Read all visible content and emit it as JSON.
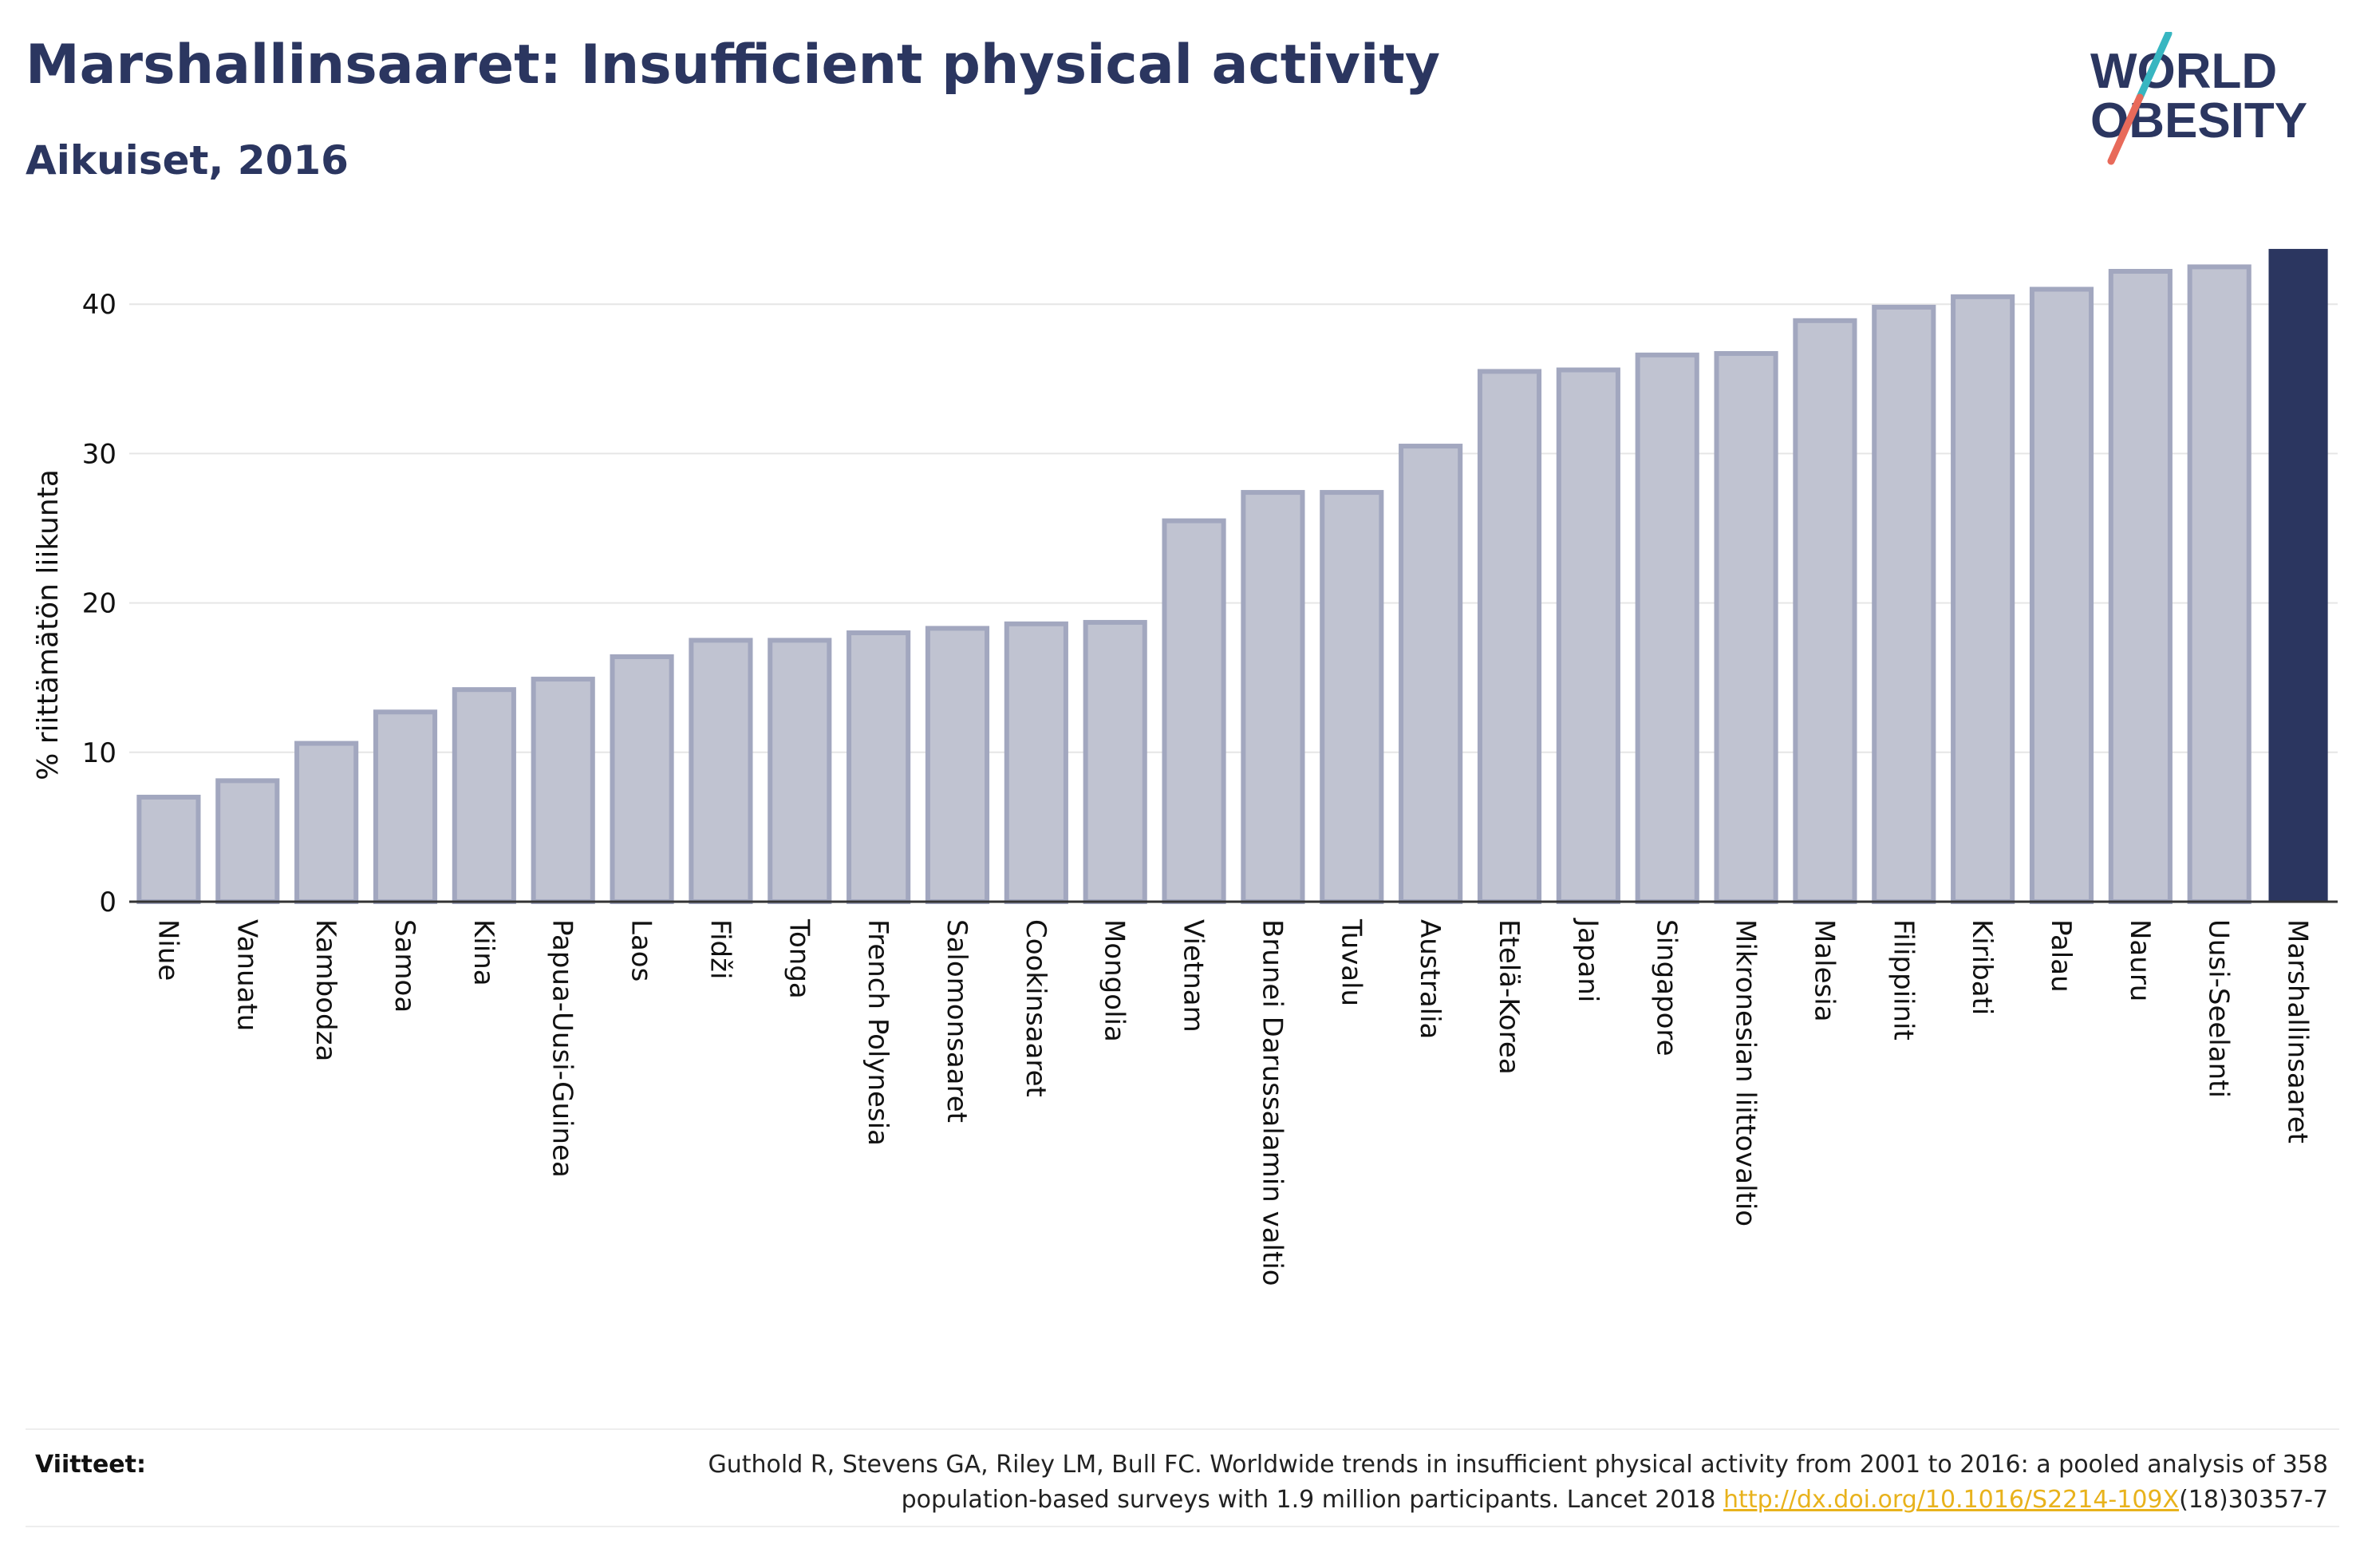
{
  "header": {
    "title": "Marshallinsaaret: Insufficient physical activity",
    "subtitle": "Aikuiset, 2016"
  },
  "logo": {
    "line1": "WORLD",
    "line2": "OBESITY",
    "text_color": "#2b3660",
    "slash_colors": [
      "#38b6c1",
      "#e86a5a"
    ]
  },
  "chart_data": {
    "type": "bar",
    "title": "Marshallinsaaret: Insufficient physical activity",
    "subtitle": "Aikuiset, 2016",
    "xlabel": "",
    "ylabel": "% riittämätön liikunta",
    "ylim": [
      0,
      44
    ],
    "yticks": [
      0,
      10,
      20,
      30,
      40
    ],
    "grid": true,
    "legend": "none",
    "highlight_category": "Marshallinsaaret",
    "colors": {
      "bar": "#c0c3d1",
      "bar_border": "#a2a7bf",
      "highlight": "#2b3660"
    },
    "categories": [
      "Niue",
      "Vanuatu",
      "Kambodza",
      "Samoa",
      "Kiina",
      "Papua-Uusi-Guinea",
      "Laos",
      "Fidži",
      "Tonga",
      "French Polynesia",
      "Salomonsaaret",
      "Cookinsaaret",
      "Mongolia",
      "Vietnam",
      "Brunei Darussalamin valtio",
      "Tuvalu",
      "Australia",
      "Etelä-Korea",
      "Japani",
      "Singapore",
      "Mikronesian liittovaltio",
      "Malesia",
      "Filippiinit",
      "Kiribati",
      "Palau",
      "Nauru",
      "Uusi-Seelanti",
      "Marshallinsaaret"
    ],
    "values": [
      7.0,
      8.1,
      10.6,
      12.7,
      14.2,
      14.9,
      16.4,
      17.5,
      17.5,
      18.0,
      18.3,
      18.6,
      18.7,
      25.5,
      27.4,
      27.4,
      30.5,
      35.5,
      35.6,
      36.6,
      36.7,
      38.9,
      39.8,
      40.5,
      41.0,
      42.2,
      42.5,
      43.7
    ]
  },
  "references": {
    "label": "Viitteet:",
    "text_line1": "Guthold R, Stevens GA, Riley LM, Bull FC. Worldwide trends in insufficient physical activity from 2001 to 2016: a pooled analysis of 358",
    "text_line2_prefix": "population-based surveys with 1.9 million participants. Lancet 2018 ",
    "link_text": "http://dx.doi.org/10.1016/S2214-109X",
    "text_line2_suffix": "(18)30357-7"
  }
}
